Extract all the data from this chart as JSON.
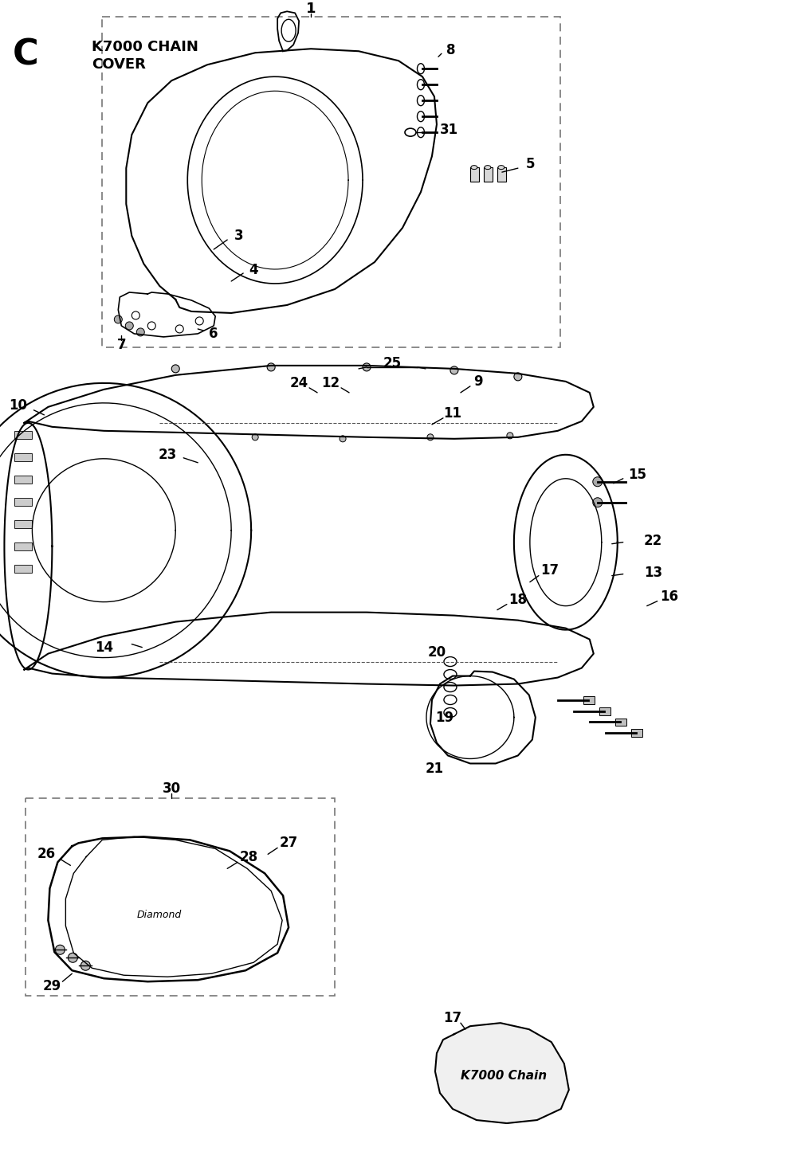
{
  "title_letter": "C",
  "title_line1": "K7000 CHAIN",
  "title_line2": "COVER",
  "background_color": "#ffffff",
  "part_numbers_box1": [
    "1",
    "3",
    "4",
    "5",
    "6",
    "7",
    "8",
    "31"
  ],
  "part_numbers_main": [
    "9",
    "10",
    "11",
    "12",
    "13",
    "14",
    "15",
    "16",
    "17",
    "18",
    "19",
    "20",
    "21",
    "22",
    "23",
    "24",
    "25"
  ],
  "part_numbers_box2": [
    "26",
    "27",
    "28",
    "29",
    "30"
  ],
  "badge_text": "K7000 Chain",
  "font_color": "#000000",
  "line_color": "#000000",
  "dashed_box_color": "#777777"
}
